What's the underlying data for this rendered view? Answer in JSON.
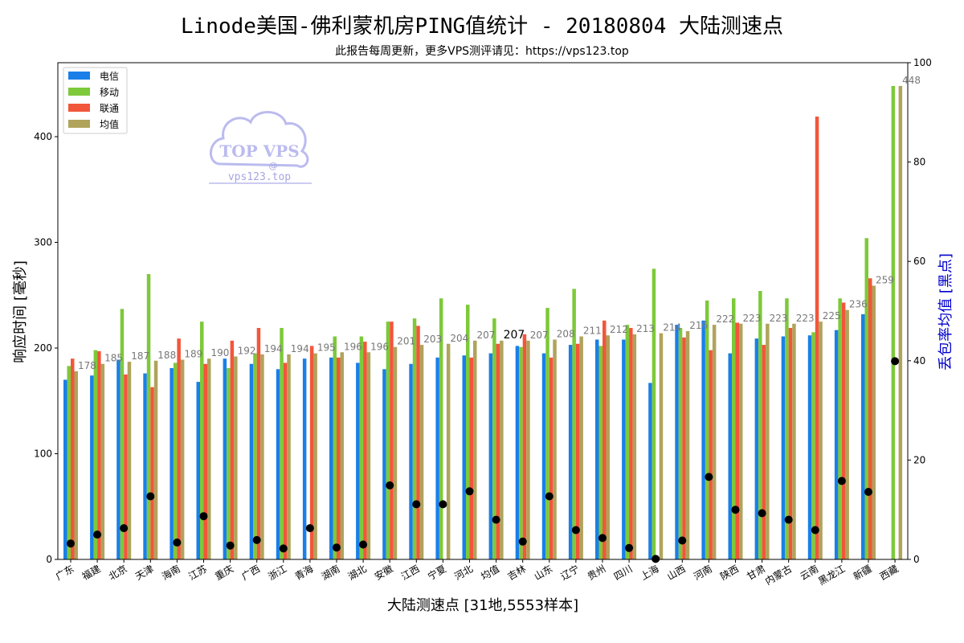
{
  "title": "Linode美国-佛利蒙机房PING值统计 - 20180804 大陆测速点",
  "subtitle": "此报告每周更新，更多VPS测评请见：https://vps123.top",
  "watermark": {
    "logo_text": "TOP VPS",
    "at": "@",
    "url": "vps123.top"
  },
  "colors": {
    "telecom": "#1a7fe8",
    "mobile": "#7dc93a",
    "unicom": "#f2563a",
    "mean": "#b0a35c",
    "loss": "#000000",
    "right_axis_label": "#0000cc"
  },
  "chart_data": {
    "type": "bar",
    "xlabel": "大陆测速点 [31地,5553样本]",
    "ylabel": "响应时间 [毫秒]",
    "ylabel_right": "丢包率均值 [黑点]",
    "ylim": [
      0,
      470
    ],
    "ylim_right": [
      0,
      100
    ],
    "yticks": [
      0,
      100,
      200,
      300,
      400
    ],
    "yticks_right": [
      0,
      20,
      40,
      60,
      80,
      100
    ],
    "legend_position": "upper-left",
    "grid": false,
    "categories": [
      "广东",
      "福建",
      "北京",
      "天津",
      "海南",
      "江苏",
      "重庆",
      "广西",
      "浙江",
      "青海",
      "湖南",
      "湖北",
      "安徽",
      "江西",
      "宁夏",
      "河北",
      "均值",
      "吉林",
      "山东",
      "辽宁",
      "贵州",
      "四川",
      "上海",
      "山西",
      "河南",
      "陕西",
      "甘肃",
      "内蒙古",
      "云南",
      "黑龙江",
      "新疆",
      "西藏"
    ],
    "series": [
      {
        "name": "电信",
        "color": "#1a7fe8",
        "values": [
          170,
          174,
          189,
          176,
          181,
          168,
          190,
          185,
          180,
          190,
          191,
          186,
          180,
          185,
          191,
          193,
          195,
          202,
          195,
          203,
          208,
          208,
          167,
          222,
          226,
          195,
          209,
          211,
          212,
          217,
          232,
          0
        ]
      },
      {
        "name": "移动",
        "color": "#7dc93a",
        "values": [
          183,
          198,
          237,
          270,
          186,
          225,
          181,
          195,
          219,
          0,
          211,
          211,
          225,
          228,
          247,
          241,
          228,
          201,
          238,
          256,
          202,
          222,
          275,
          219,
          245,
          247,
          254,
          247,
          215,
          247,
          304,
          448
        ]
      },
      {
        "name": "联通",
        "color": "#f2563a",
        "values": [
          190,
          197,
          175,
          163,
          209,
          185,
          207,
          219,
          186,
          202,
          191,
          206,
          225,
          221,
          0,
          191,
          204,
          213,
          191,
          204,
          226,
          219,
          0,
          210,
          198,
          224,
          203,
          219,
          419,
          243,
          266,
          0
        ]
      },
      {
        "name": "均值",
        "color": "#b0a35c",
        "values": [
          178,
          185,
          187,
          188,
          189,
          190,
          192,
          194,
          194,
          195,
          196,
          196,
          201,
          203,
          204,
          207,
          207,
          207,
          208,
          211,
          212,
          213,
          214,
          216,
          222,
          223,
          223,
          223,
          225,
          236,
          259,
          448
        ]
      }
    ],
    "mean_labels": [
      "178",
      "185",
      "187",
      "188",
      "189",
      "190",
      "192",
      "194",
      "194",
      "195",
      "196",
      "196",
      "201",
      "203",
      "204",
      "207",
      "207",
      "207",
      "208",
      "211",
      "212",
      "213",
      "214",
      "216",
      "222",
      "223",
      "223",
      "223",
      "225",
      "236",
      "259",
      "448"
    ],
    "packet_loss": [
      3.2,
      5.0,
      6.3,
      12.7,
      3.4,
      8.7,
      2.8,
      3.9,
      2.2,
      6.3,
      2.4,
      3.0,
      14.9,
      11.1,
      11.1,
      13.7,
      8.0,
      3.6,
      12.7,
      5.9,
      4.3,
      2.3,
      0.1,
      3.8,
      16.6,
      10.0,
      9.3,
      8.0,
      5.9,
      15.8,
      13.6,
      39.9
    ]
  }
}
